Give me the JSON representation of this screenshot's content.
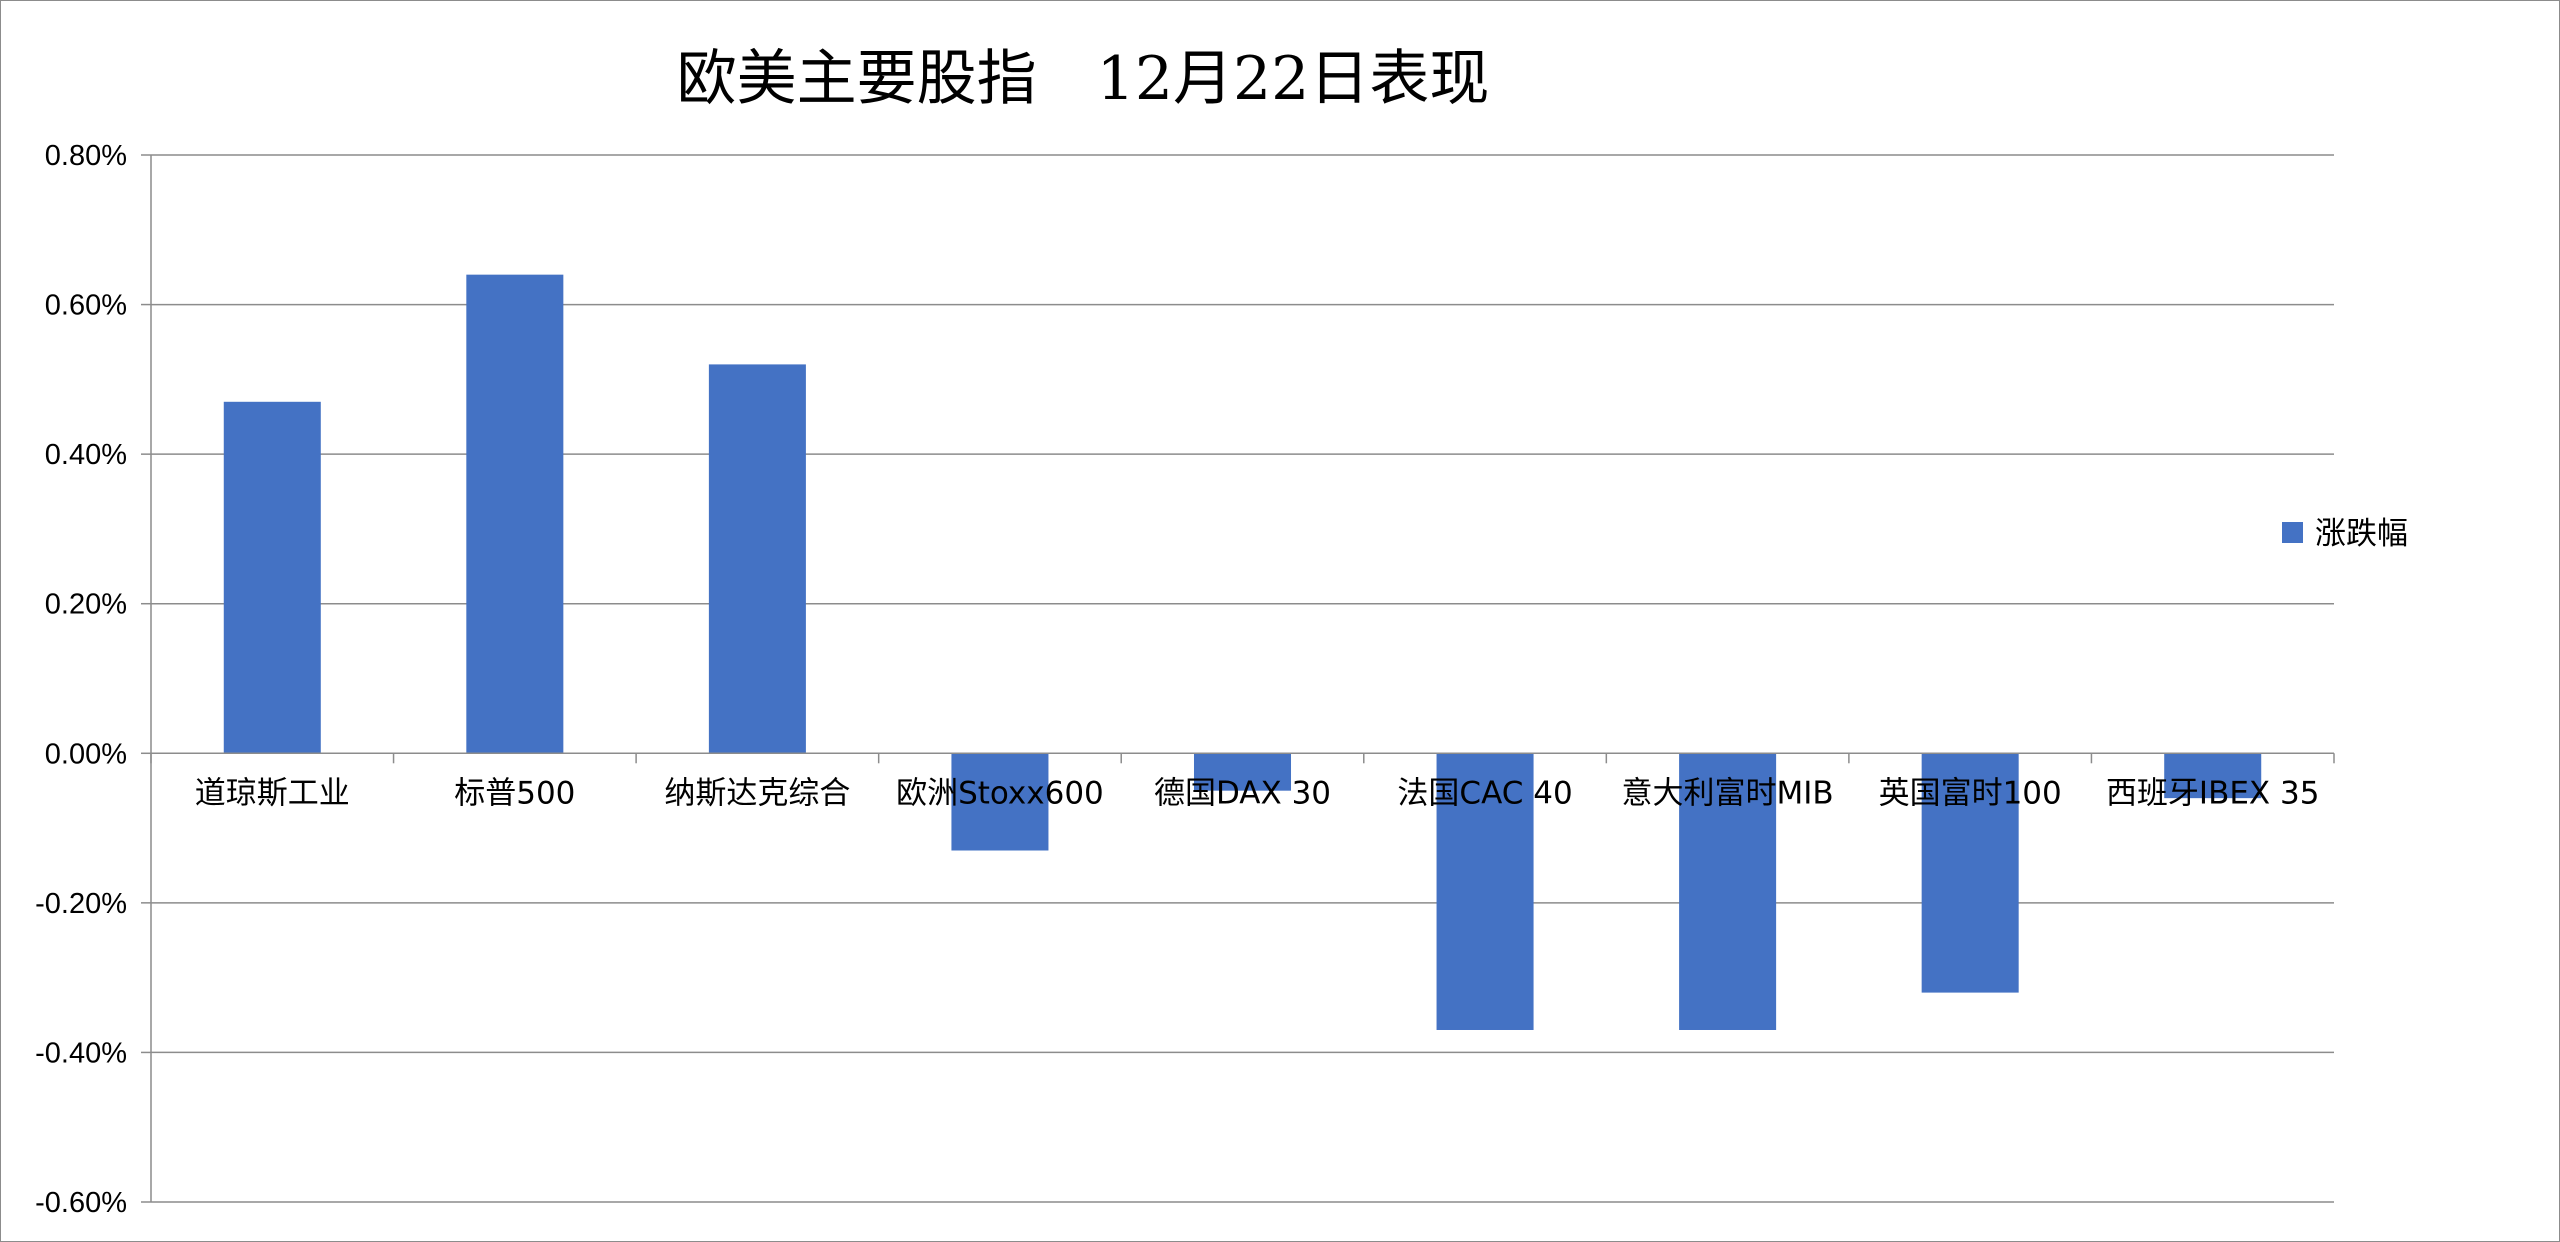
{
  "chart_data": {
    "type": "bar",
    "title": "欧美主要股指　12月22日表现",
    "xlabel": "",
    "ylabel": "",
    "categories": [
      "道琼斯工业",
      "标普500",
      "纳斯达克综合",
      "欧洲Stoxx600",
      "德国DAX 30",
      "法国CAC 40",
      "意大利富时MIB",
      "英国富时100",
      "西班牙IBEX 35"
    ],
    "series": [
      {
        "name": "涨跌幅",
        "values": [
          0.47,
          0.64,
          0.52,
          -0.13,
          -0.05,
          -0.37,
          -0.37,
          -0.32,
          -0.06
        ],
        "color": "#4472C4"
      }
    ],
    "value_unit": "%",
    "ylim": [
      -0.6,
      0.8
    ],
    "yticks": [
      0.8,
      0.6,
      0.4,
      0.2,
      0.0,
      -0.2,
      -0.4,
      -0.6
    ],
    "ytick_labels": [
      "0.80%",
      "0.60%",
      "0.40%",
      "0.20%",
      "0.00%",
      "-0.20%",
      "-0.40%",
      "-0.60%"
    ],
    "grid": true,
    "grid_color": "#8c8c8c",
    "legend": "right"
  }
}
